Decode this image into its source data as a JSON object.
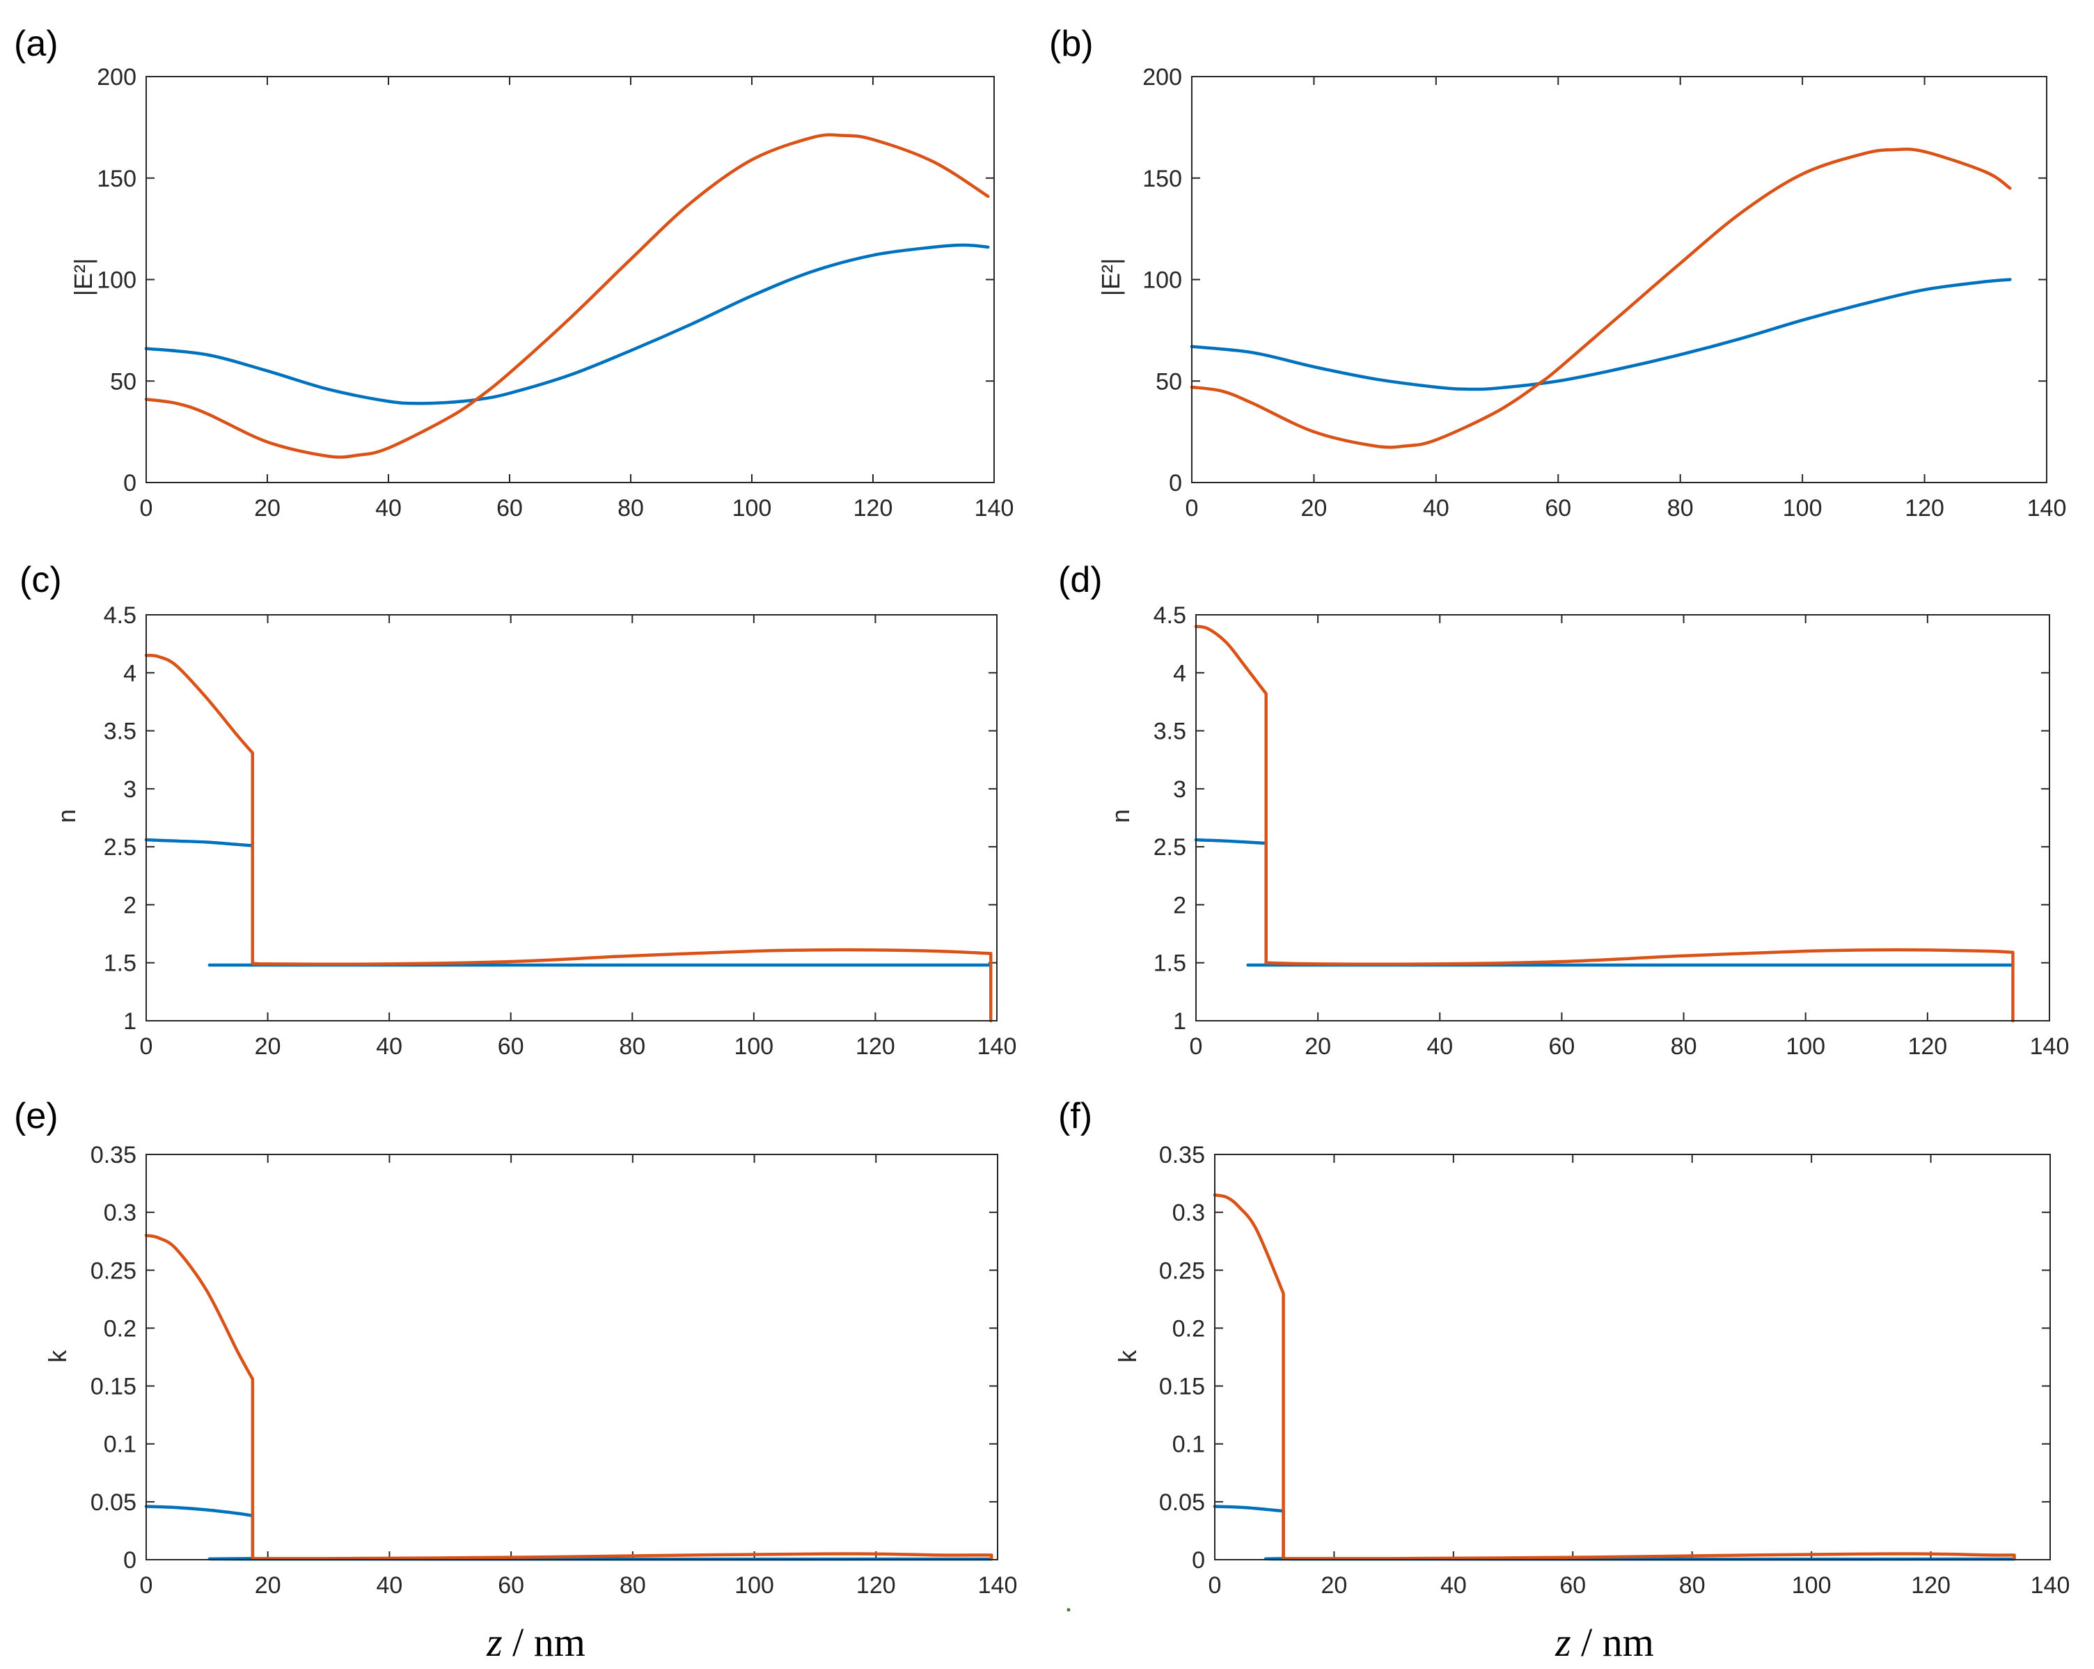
{
  "figure": {
    "xaxis_title_left": {
      "italic": "z",
      "rest": " / nm"
    },
    "xaxis_title_right": {
      "italic": "z",
      "rest": " / nm"
    }
  },
  "colors": {
    "blue": "#0072BD",
    "orange": "#D95319"
  },
  "chart_data": [
    {
      "id": "a",
      "label": "(a)",
      "type": "line",
      "ylabel": "|E²|",
      "xlim": [
        0,
        140
      ],
      "ylim": [
        0,
        200
      ],
      "xticks": [
        0,
        20,
        40,
        60,
        80,
        100,
        120,
        140
      ],
      "yticks": [
        0,
        50,
        100,
        150,
        200
      ],
      "ytick_labels": [
        "0",
        "50",
        "100",
        "150",
        "200"
      ],
      "series": [
        {
          "name": "blue",
          "color": "#0072BD",
          "x": [
            0,
            10,
            20,
            30,
            40,
            45,
            50,
            55,
            60,
            70,
            80,
            90,
            100,
            110,
            120,
            130,
            135,
            139
          ],
          "y": [
            66,
            63,
            55,
            46,
            40,
            39,
            39.5,
            41,
            44,
            53,
            65,
            78,
            92,
            104,
            112,
            116,
            117,
            116
          ]
        },
        {
          "name": "orange",
          "color": "#D95319",
          "x": [
            0,
            5,
            10,
            20,
            30,
            35,
            40,
            50,
            55,
            60,
            70,
            80,
            90,
            100,
            110,
            115,
            120,
            130,
            139
          ],
          "y": [
            41,
            39,
            34,
            20,
            13,
            13.5,
            17,
            32,
            42,
            54,
            81,
            110,
            138,
            159,
            170,
            171,
            169,
            158,
            141
          ]
        }
      ]
    },
    {
      "id": "b",
      "label": "(b)",
      "type": "line",
      "ylabel": "|E²|",
      "xlim": [
        0,
        140
      ],
      "ylim": [
        0,
        200
      ],
      "xticks": [
        0,
        20,
        40,
        60,
        80,
        100,
        120,
        140
      ],
      "yticks": [
        0,
        50,
        100,
        150,
        200
      ],
      "ytick_labels": [
        "0",
        "50",
        "100",
        "150",
        "200"
      ],
      "series": [
        {
          "name": "blue",
          "color": "#0072BD",
          "x": [
            0,
            10,
            20,
            30,
            40,
            45,
            50,
            60,
            70,
            80,
            90,
            100,
            110,
            120,
            130,
            134
          ],
          "y": [
            67,
            64,
            57,
            51,
            47,
            46,
            46.5,
            50,
            56,
            63,
            71,
            80,
            88,
            95,
            99,
            100
          ]
        },
        {
          "name": "orange",
          "color": "#D95319",
          "x": [
            0,
            5,
            10,
            20,
            30,
            35,
            40,
            50,
            57,
            60,
            70,
            80,
            90,
            100,
            110,
            115,
            120,
            130,
            134
          ],
          "y": [
            47,
            45,
            39,
            25,
            18,
            18,
            21,
            35,
            49,
            56,
            82,
            108,
            133,
            152,
            162,
            164,
            163,
            153,
            145
          ]
        }
      ]
    },
    {
      "id": "c",
      "label": "(c)",
      "type": "line",
      "ylabel": "n",
      "xlim": [
        0,
        140
      ],
      "ylim": [
        1,
        4.5
      ],
      "xticks": [
        0,
        20,
        40,
        60,
        80,
        100,
        120,
        140
      ],
      "yticks": [
        1,
        1.5,
        2,
        2.5,
        3,
        3.5,
        4,
        4.5
      ],
      "ytick_labels": [
        "1",
        "1.5",
        "2",
        "2.5",
        "3",
        "3.5",
        "4",
        "4.5"
      ],
      "series": [
        {
          "name": "blue",
          "color": "#0072BD",
          "x": [
            0,
            5,
            10,
            15,
            17.5,
            17.5,
            20,
            139
          ],
          "y": [
            2.56,
            2.55,
            2.54,
            2.52,
            2.51,
            1.48,
            1.48,
            1.48
          ]
        },
        {
          "name": "orange",
          "color": "#D95319",
          "x": [
            0,
            2,
            5,
            10,
            15,
            17.5,
            17.5,
            20,
            40,
            60,
            80,
            100,
            110,
            120,
            130,
            139,
            139
          ],
          "y": [
            4.15,
            4.14,
            4.06,
            3.78,
            3.46,
            3.31,
            1.5,
            1.49,
            1.49,
            1.51,
            1.56,
            1.6,
            1.61,
            1.61,
            1.6,
            1.58,
            1.0
          ]
        }
      ]
    },
    {
      "id": "d",
      "label": "(d)",
      "type": "line",
      "ylabel": "n",
      "xlim": [
        0,
        140
      ],
      "ylim": [
        1,
        4.5
      ],
      "xticks": [
        0,
        20,
        40,
        60,
        80,
        100,
        120,
        140
      ],
      "yticks": [
        1,
        1.5,
        2,
        2.5,
        3,
        3.5,
        4,
        4.5
      ],
      "ytick_labels": [
        "1",
        "1.5",
        "2",
        "2.5",
        "3",
        "3.5",
        "4",
        "4.5"
      ],
      "series": [
        {
          "name": "blue",
          "color": "#0072BD",
          "x": [
            0,
            5,
            11.5,
            11.5,
            20,
            134
          ],
          "y": [
            2.56,
            2.55,
            2.53,
            1.48,
            1.48,
            1.48
          ]
        },
        {
          "name": "orange",
          "color": "#D95319",
          "x": [
            0,
            2,
            5,
            8,
            11.5,
            11.5,
            20,
            40,
            60,
            80,
            100,
            110,
            120,
            130,
            134,
            134
          ],
          "y": [
            4.4,
            4.38,
            4.26,
            4.06,
            3.82,
            1.5,
            1.49,
            1.49,
            1.51,
            1.56,
            1.6,
            1.61,
            1.61,
            1.6,
            1.59,
            1.0
          ]
        }
      ]
    },
    {
      "id": "e",
      "label": "(e)",
      "type": "line",
      "ylabel": "k",
      "xlim": [
        0,
        140
      ],
      "ylim": [
        0,
        0.35
      ],
      "xticks": [
        0,
        20,
        40,
        60,
        80,
        100,
        120,
        140
      ],
      "yticks": [
        0,
        0.05,
        0.1,
        0.15,
        0.2,
        0.25,
        0.3,
        0.35
      ],
      "ytick_labels": [
        "0",
        "0.05",
        "0.1",
        "0.15",
        "0.2",
        "0.25",
        "0.3",
        "0.35"
      ],
      "series": [
        {
          "name": "blue",
          "color": "#0072BD",
          "x": [
            0,
            5,
            10,
            15,
            17.5,
            17.5,
            20,
            139
          ],
          "y": [
            0.046,
            0.045,
            0.043,
            0.04,
            0.038,
            0.001,
            0.0005,
            0.0005
          ]
        },
        {
          "name": "orange",
          "color": "#D95319",
          "x": [
            0,
            2,
            5,
            10,
            15,
            17.5,
            17.5,
            30,
            60,
            90,
            110,
            120,
            130,
            139,
            139
          ],
          "y": [
            0.28,
            0.278,
            0.268,
            0.232,
            0.18,
            0.156,
            0.001,
            0.001,
            0.002,
            0.004,
            0.005,
            0.005,
            0.004,
            0.004,
            0.001
          ]
        }
      ]
    },
    {
      "id": "f",
      "label": "(f)",
      "type": "line",
      "ylabel": "k",
      "xlim": [
        0,
        140
      ],
      "ylim": [
        0,
        0.35
      ],
      "xticks": [
        0,
        20,
        40,
        60,
        80,
        100,
        120,
        140
      ],
      "yticks": [
        0,
        0.05,
        0.1,
        0.15,
        0.2,
        0.25,
        0.3,
        0.35
      ],
      "ytick_labels": [
        "0",
        "0.05",
        "0.1",
        "0.15",
        "0.2",
        "0.25",
        "0.3",
        "0.35"
      ],
      "series": [
        {
          "name": "blue",
          "color": "#0072BD",
          "x": [
            0,
            5,
            11.5,
            11.5,
            20,
            134
          ],
          "y": [
            0.046,
            0.045,
            0.042,
            0.001,
            0.0005,
            0.0005
          ]
        },
        {
          "name": "orange",
          "color": "#D95319",
          "x": [
            0,
            2,
            4,
            7,
            11.5,
            11.5,
            30,
            60,
            90,
            110,
            120,
            130,
            134,
            134
          ],
          "y": [
            0.315,
            0.313,
            0.305,
            0.285,
            0.23,
            0.001,
            0.001,
            0.002,
            0.004,
            0.005,
            0.005,
            0.004,
            0.004,
            0.001
          ]
        }
      ]
    }
  ]
}
